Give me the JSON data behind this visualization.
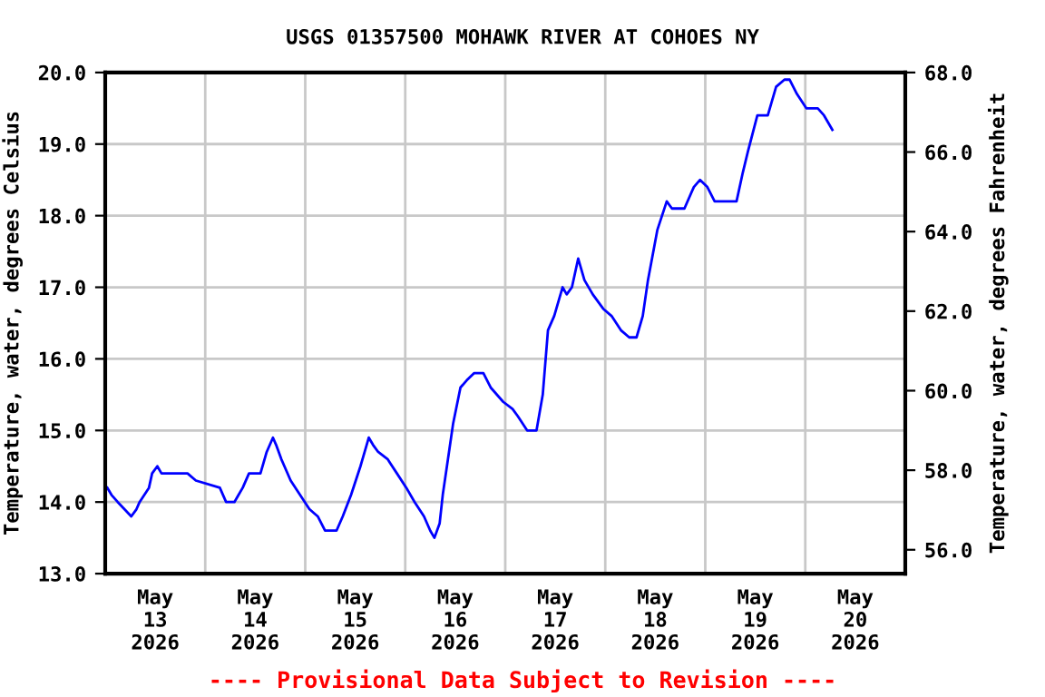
{
  "chart_data": {
    "type": "line",
    "title": "USGS 01357500 MOHAWK RIVER AT COHOES NY",
    "ylabel": "Temperature, water, degrees Celsius",
    "y2label": "Temperature, water, degrees Fahrenheit",
    "annotations": [
      "---- Provisional Data Subject to Revision ----"
    ],
    "x": [
      "2026-05-13T00:30",
      "2026-05-13T01:30",
      "2026-05-13T03:00",
      "2026-05-13T06:15",
      "2026-05-13T07:30",
      "2026-05-13T08:15",
      "2026-05-13T10:30",
      "2026-05-13T11:15",
      "2026-05-13T12:30",
      "2026-05-13T13:30",
      "2026-05-13T19:45",
      "2026-05-13T21:45",
      "2026-05-14T03:30",
      "2026-05-14T05:00",
      "2026-05-14T07:00",
      "2026-05-14T08:00",
      "2026-05-14T09:00",
      "2026-05-14T10:30",
      "2026-05-14T13:15",
      "2026-05-14T14:45",
      "2026-05-14T16:15",
      "2026-05-14T17:00",
      "2026-05-14T18:15",
      "2026-05-14T20:30",
      "2026-05-14T22:45",
      "2026-05-15T01:00",
      "2026-05-15T03:00",
      "2026-05-15T04:45",
      "2026-05-15T07:30",
      "2026-05-15T09:00",
      "2026-05-15T11:00",
      "2026-05-15T13:15",
      "2026-05-15T14:45",
      "2026-05-15T15:15",
      "2026-05-15T16:15",
      "2026-05-15T17:30",
      "2026-05-15T19:45",
      "2026-05-15T22:00",
      "2026-05-16T00:15",
      "2026-05-16T02:15",
      "2026-05-16T04:30",
      "2026-05-16T06:00",
      "2026-05-16T07:00",
      "2026-05-16T08:15",
      "2026-05-16T09:00",
      "2026-05-16T10:30",
      "2026-05-16T11:30",
      "2026-05-16T13:15",
      "2026-05-16T14:45",
      "2026-05-16T16:30",
      "2026-05-16T18:45",
      "2026-05-16T20:30",
      "2026-05-16T23:30",
      "2026-05-17T01:45",
      "2026-05-17T03:00",
      "2026-05-17T05:15",
      "2026-05-17T07:30",
      "2026-05-17T09:00",
      "2026-05-17T10:15",
      "2026-05-17T11:45",
      "2026-05-17T13:45",
      "2026-05-17T14:45",
      "2026-05-17T16:00",
      "2026-05-17T17:30",
      "2026-05-17T19:00",
      "2026-05-17T21:00",
      "2026-05-17T23:30",
      "2026-05-18T01:30",
      "2026-05-18T03:45",
      "2026-05-18T05:45",
      "2026-05-18T07:30",
      "2026-05-18T09:00",
      "2026-05-18T10:15",
      "2026-05-18T12:30",
      "2026-05-18T14:45",
      "2026-05-18T16:00",
      "2026-05-18T19:00",
      "2026-05-18T21:15",
      "2026-05-18T22:45",
      "2026-05-19T00:30",
      "2026-05-19T02:15",
      "2026-05-19T07:30",
      "2026-05-19T09:00",
      "2026-05-19T10:15",
      "2026-05-19T12:30",
      "2026-05-19T15:00",
      "2026-05-19T17:00",
      "2026-05-19T19:00",
      "2026-05-19T20:15",
      "2026-05-19T22:00",
      "2026-05-20T00:15",
      "2026-05-20T03:00",
      "2026-05-20T04:30",
      "2026-05-20T06:30"
    ],
    "series": [
      {
        "color": "#0000ff",
        "values": [
          14.2,
          14.1,
          14.0,
          13.8,
          13.9,
          14.0,
          14.2,
          14.4,
          14.5,
          14.4,
          14.4,
          14.3,
          14.2,
          14.0,
          14.0,
          14.1,
          14.2,
          14.4,
          14.4,
          14.7,
          14.9,
          14.8,
          14.6,
          14.3,
          14.1,
          13.9,
          13.8,
          13.6,
          13.6,
          13.8,
          14.1,
          14.5,
          14.8,
          14.9,
          14.8,
          14.7,
          14.6,
          14.4,
          14.2,
          14.0,
          13.8,
          13.6,
          13.5,
          13.7,
          14.1,
          14.7,
          15.1,
          15.6,
          15.7,
          15.8,
          15.8,
          15.6,
          15.4,
          15.3,
          15.2,
          15.0,
          15.0,
          15.5,
          16.4,
          16.6,
          17.0,
          16.9,
          17.0,
          17.4,
          17.1,
          16.9,
          16.7,
          16.6,
          16.4,
          16.3,
          16.3,
          16.6,
          17.1,
          17.8,
          18.2,
          18.1,
          18.1,
          18.4,
          18.5,
          18.4,
          18.2,
          18.2,
          18.6,
          18.9,
          19.4,
          19.4,
          19.8,
          19.9,
          19.9,
          19.7,
          19.5,
          19.5,
          19.4,
          19.2
        ]
      }
    ],
    "xlim": [
      "2026-05-13T00:00",
      "2026-05-21T00:00"
    ],
    "xticks": [
      {
        "value": "2026-05-14T00:00",
        "label": null
      },
      {
        "value": "2026-05-15T00:00",
        "label": null
      },
      {
        "value": "2026-05-16T00:00",
        "label": null
      },
      {
        "value": "2026-05-17T00:00",
        "label": null
      },
      {
        "value": "2026-05-18T00:00",
        "label": null
      },
      {
        "value": "2026-05-19T00:00",
        "label": null
      },
      {
        "value": "2026-05-20T00:00",
        "label": null
      },
      {
        "value": "2026-05-13T12:00",
        "label": "May\n13\n2026"
      },
      {
        "value": "2026-05-14T12:00",
        "label": "May\n14\n2026"
      },
      {
        "value": "2026-05-15T12:00",
        "label": "May\n15\n2026"
      },
      {
        "value": "2026-05-16T12:00",
        "label": "May\n16\n2026"
      },
      {
        "value": "2026-05-17T12:00",
        "label": "May\n17\n2026"
      },
      {
        "value": "2026-05-18T12:00",
        "label": "May\n18\n2026"
      },
      {
        "value": "2026-05-19T12:00",
        "label": "May\n19\n2026"
      },
      {
        "value": "2026-05-20T12:00",
        "label": "May\n20\n2026"
      }
    ],
    "ylim": [
      13.0,
      20.0
    ],
    "yticks": [
      {
        "value": 13,
        "label": "13.0"
      },
      {
        "value": 14,
        "label": "14.0"
      },
      {
        "value": 15,
        "label": "15.0"
      },
      {
        "value": 16,
        "label": "16.0"
      },
      {
        "value": 17,
        "label": "17.0"
      },
      {
        "value": 18,
        "label": "18.0"
      },
      {
        "value": 19,
        "label": "19.0"
      },
      {
        "value": 20,
        "label": "20.0"
      }
    ],
    "y2lim": [
      55.4,
      68.0
    ],
    "y2ticks": [
      {
        "value": 56,
        "label": "56.0"
      },
      {
        "value": 58,
        "label": "58.0"
      },
      {
        "value": 60,
        "label": "60.0"
      },
      {
        "value": 62,
        "label": "62.0"
      },
      {
        "value": 64,
        "label": "64.0"
      },
      {
        "value": 66,
        "label": "66.0"
      },
      {
        "value": 68,
        "label": "68.0"
      }
    ],
    "grid": true,
    "legend": false,
    "marker": "none",
    "line_style": "solid"
  }
}
